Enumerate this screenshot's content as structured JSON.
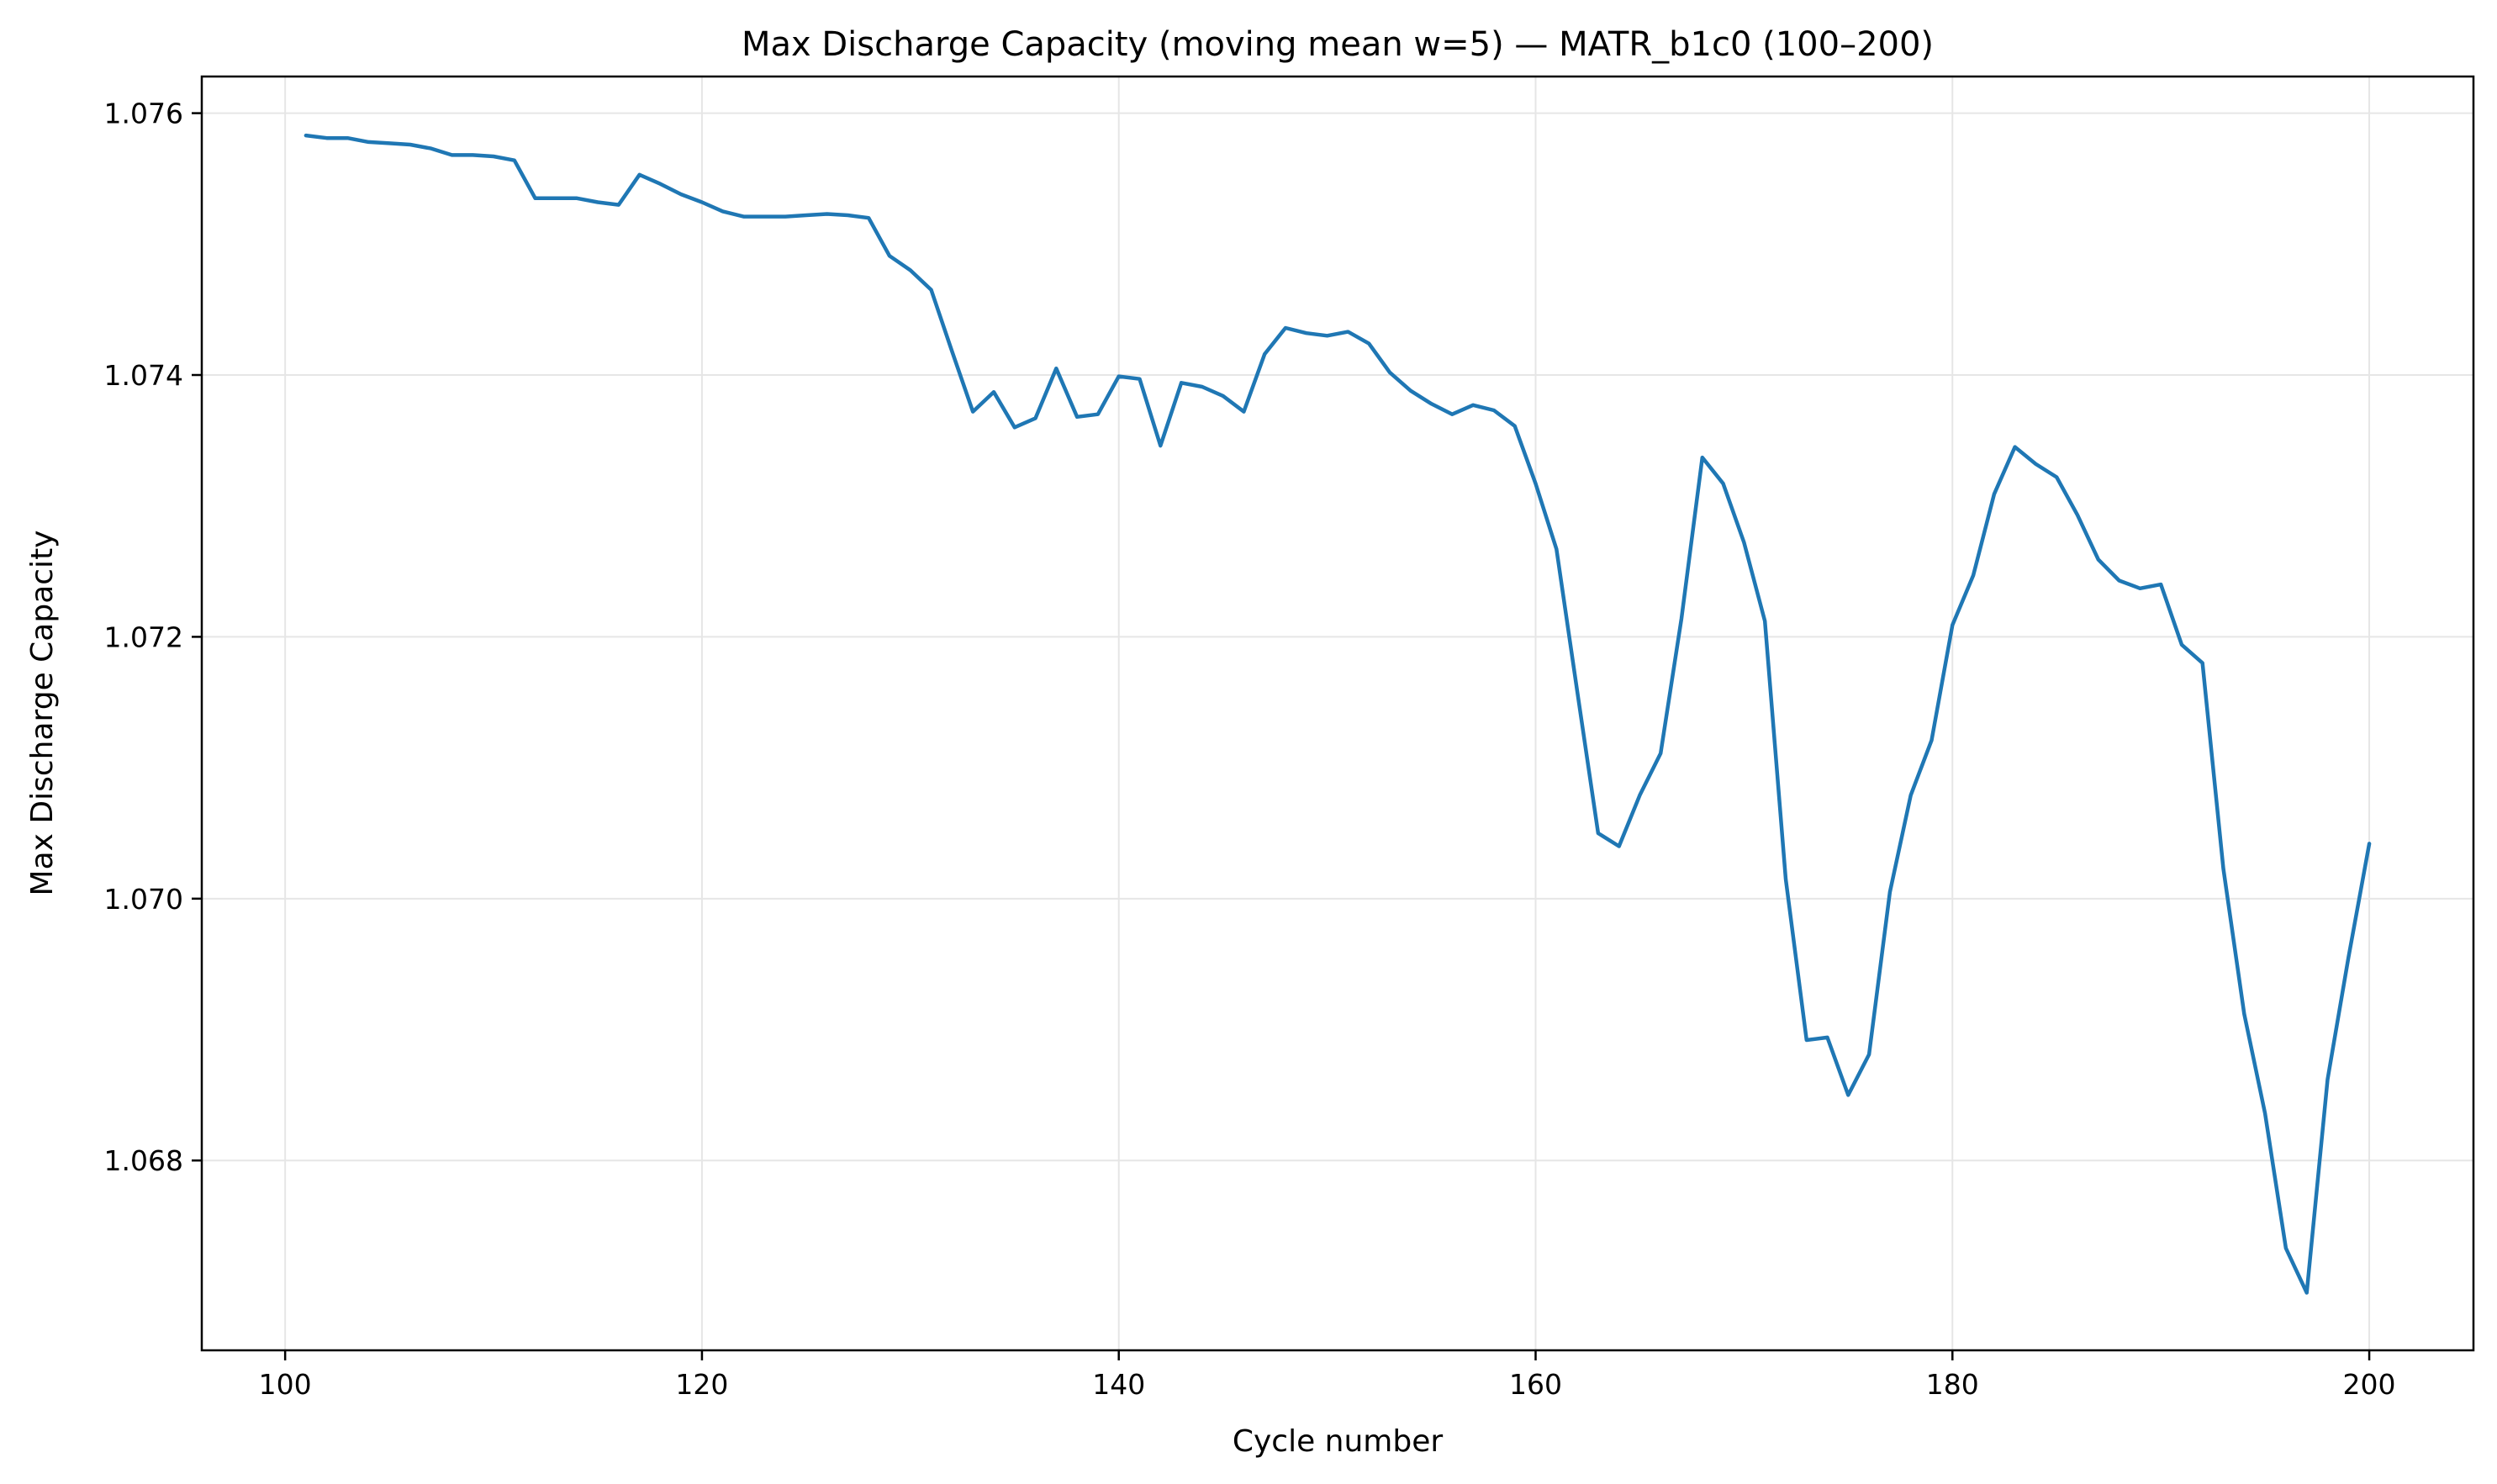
{
  "colors": {
    "series": "#1f77b4"
  },
  "chart_data": {
    "type": "line",
    "title": "Max Discharge Capacity (moving mean w=5) — MATR_b1c0 (100–200)",
    "xlabel": "Cycle number",
    "ylabel": "Max Discharge Capacity",
    "xlim": [
      96,
      205
    ],
    "ylim": [
      1.06655,
      1.07628
    ],
    "xticks": [
      100,
      120,
      140,
      160,
      180,
      200
    ],
    "yticks": [
      1.068,
      1.07,
      1.072,
      1.074,
      1.076
    ],
    "xtick_labels": [
      "100",
      "120",
      "140",
      "160",
      "180",
      "200"
    ],
    "ytick_labels": [
      "1.068",
      "1.070",
      "1.072",
      "1.074",
      "1.076"
    ],
    "grid": true,
    "series": [
      {
        "x": [
          101,
          102,
          103,
          104,
          105,
          106,
          107,
          108,
          109,
          110,
          111,
          112,
          113,
          114,
          115,
          116,
          117,
          118,
          119,
          120,
          121,
          122,
          123,
          124,
          125,
          126,
          127,
          128,
          129,
          130,
          131,
          132,
          133,
          134,
          135,
          136,
          137,
          138,
          139,
          140,
          141,
          142,
          143,
          144,
          145,
          146,
          147,
          148,
          149,
          150,
          151,
          152,
          153,
          154,
          155,
          156,
          157,
          158,
          159,
          160,
          161,
          162,
          163,
          164,
          165,
          166,
          167,
          168,
          169,
          170,
          171,
          172,
          173,
          174,
          175,
          176,
          177,
          178,
          179,
          180,
          181,
          182,
          183,
          184,
          185,
          186,
          187,
          188,
          189,
          190,
          191,
          192,
          193,
          194,
          195,
          196,
          197,
          198,
          199,
          200
        ],
        "y": [
          1.07583,
          1.07581,
          1.07581,
          1.07578,
          1.07577,
          1.07576,
          1.07573,
          1.07568,
          1.07568,
          1.07567,
          1.07564,
          1.07535,
          1.07535,
          1.07535,
          1.07532,
          1.0753,
          1.07553,
          1.07546,
          1.07538,
          1.07532,
          1.07525,
          1.07521,
          1.07521,
          1.07521,
          1.07522,
          1.07523,
          1.07522,
          1.0752,
          1.07491,
          1.0748,
          1.07465,
          1.07418,
          1.07372,
          1.07387,
          1.0736,
          1.07367,
          1.07405,
          1.07368,
          1.0737,
          1.07399,
          1.07397,
          1.07346,
          1.07394,
          1.07391,
          1.07384,
          1.07372,
          1.07416,
          1.07436,
          1.07432,
          1.0743,
          1.07433,
          1.07424,
          1.07402,
          1.07388,
          1.07378,
          1.0737,
          1.07377,
          1.07373,
          1.07361,
          1.07317,
          1.07267,
          1.07158,
          1.0705,
          1.0704,
          1.07079,
          1.07111,
          1.07214,
          1.07337,
          1.07317,
          1.07272,
          1.07212,
          1.07015,
          1.06892,
          1.06894,
          1.0685,
          1.06881,
          1.07005,
          1.07079,
          1.07121,
          1.07209,
          1.07247,
          1.07309,
          1.07345,
          1.07332,
          1.07322,
          1.07293,
          1.07259,
          1.07243,
          1.07237,
          1.0724,
          1.07194,
          1.0718,
          1.07023,
          1.06912,
          1.06836,
          1.06733,
          1.06699,
          1.06862,
          1.06955,
          1.07042
        ]
      }
    ]
  }
}
